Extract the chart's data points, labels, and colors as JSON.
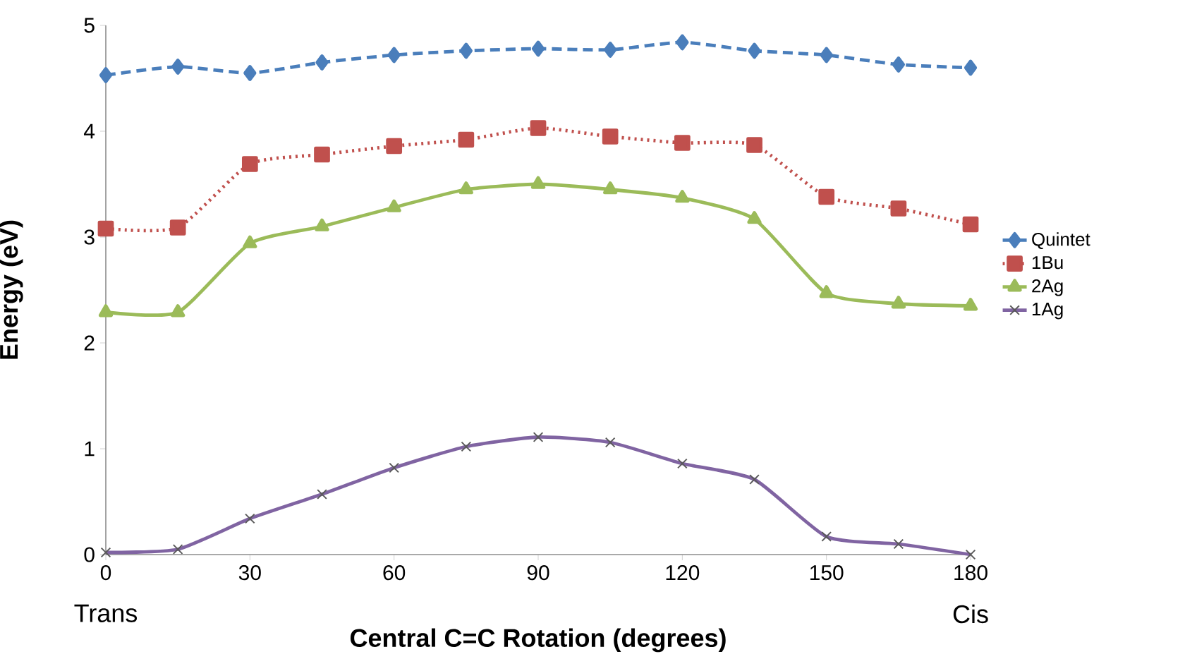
{
  "chart_data": {
    "type": "line",
    "xlabel": "Central C=C Rotation (degrees)",
    "ylabel": "Energy (eV)",
    "x": [
      0,
      15,
      30,
      45,
      60,
      75,
      90,
      105,
      120,
      135,
      150,
      165,
      180
    ],
    "xlim": [
      0,
      180
    ],
    "xticks": [
      0,
      30,
      60,
      90,
      120,
      150,
      180
    ],
    "ylim": [
      0,
      5
    ],
    "yticks": [
      0,
      1,
      2,
      3,
      4,
      5
    ],
    "legend": "right",
    "grid": false,
    "annotations": [
      "Trans",
      "Cis"
    ],
    "series": [
      {
        "name": "Quintet",
        "color": "#4a7ebb",
        "marker": "diamond",
        "line_style": "dashed",
        "values": [
          4.53,
          4.61,
          4.55,
          4.65,
          4.72,
          4.76,
          4.78,
          4.77,
          4.84,
          4.76,
          4.72,
          4.63,
          4.6
        ]
      },
      {
        "name": "1Bu",
        "color": "#c0504d",
        "marker": "square",
        "line_style": "dotted",
        "values": [
          3.08,
          3.09,
          3.69,
          3.78,
          3.86,
          3.92,
          4.03,
          3.95,
          3.89,
          3.87,
          3.38,
          3.27,
          3.12
        ]
      },
      {
        "name": "2Ag",
        "color": "#9bbb59",
        "marker": "triangle",
        "line_style": "solid",
        "values": [
          2.29,
          2.29,
          2.94,
          3.1,
          3.28,
          3.45,
          3.5,
          3.45,
          3.37,
          3.17,
          2.47,
          2.37,
          2.35
        ]
      },
      {
        "name": "1Ag",
        "color": "#8064a2",
        "marker": "cross",
        "line_style": "solid",
        "values": [
          0.02,
          0.05,
          0.34,
          0.57,
          0.82,
          1.02,
          1.11,
          1.06,
          0.86,
          0.71,
          0.17,
          0.1,
          0
        ]
      }
    ]
  }
}
